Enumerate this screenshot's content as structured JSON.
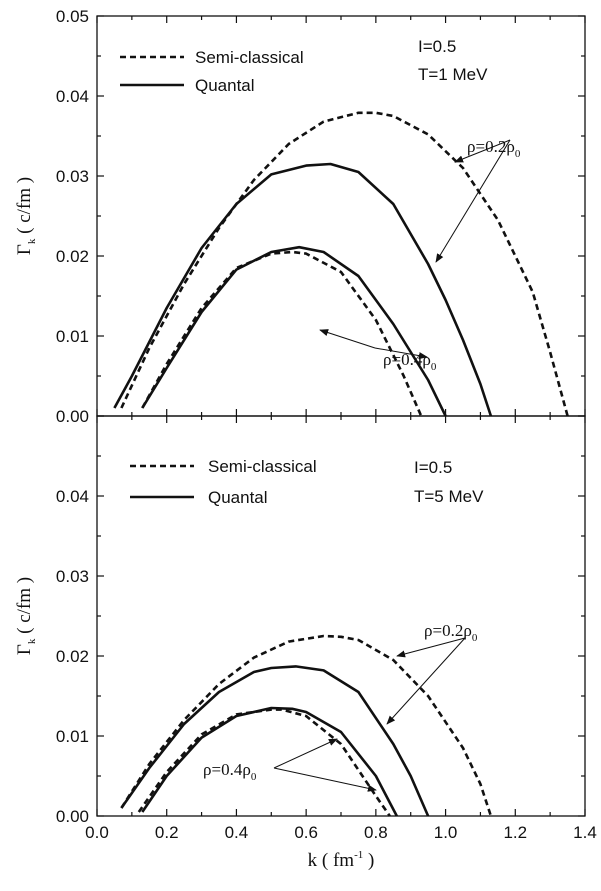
{
  "chart_data": [
    {
      "type": "line",
      "panel": "top",
      "x_tick_labels": [],
      "y_ticks": [
        "0.00",
        "0.01",
        "0.02",
        "0.03",
        "0.04",
        "0.05"
      ],
      "ylim": [
        0,
        0.05
      ],
      "xlim": [
        0,
        1.4
      ],
      "ylabel": {
        "main": "Γ",
        "sub": "k",
        "rest": " ( c/fm )"
      },
      "legend": {
        "placement": "top-left",
        "semi": "Semi-classical",
        "quantal": "Quantal"
      },
      "conditions": [
        "I=0.5",
        "T=1 MeV"
      ],
      "series": [
        {
          "name": "Semi-classical",
          "curve": "ρ=0.2ρ0",
          "style": "dashed",
          "x": [
            0.07,
            0.15,
            0.25,
            0.35,
            0.45,
            0.55,
            0.65,
            0.75,
            0.8,
            0.85,
            0.95,
            1.05,
            1.15,
            1.25,
            1.3,
            1.35
          ],
          "y": [
            0.001,
            0.0085,
            0.0165,
            0.0235,
            0.0295,
            0.034,
            0.0368,
            0.0379,
            0.0379,
            0.0375,
            0.0352,
            0.031,
            0.0245,
            0.0155,
            0.008,
            0.0
          ]
        },
        {
          "name": "Quantal",
          "curve": "ρ=0.2ρ0",
          "style": "solid",
          "x": [
            0.05,
            0.1,
            0.2,
            0.3,
            0.4,
            0.5,
            0.6,
            0.67,
            0.75,
            0.85,
            0.95,
            1.0,
            1.05,
            1.1,
            1.13
          ],
          "y": [
            0.001,
            0.005,
            0.0135,
            0.021,
            0.0265,
            0.0302,
            0.0313,
            0.0315,
            0.0305,
            0.0265,
            0.019,
            0.0145,
            0.0095,
            0.004,
            0.0
          ]
        },
        {
          "name": "Semi-classical",
          "curve": "ρ=0.4ρ0",
          "style": "dashed",
          "x": [
            0.13,
            0.2,
            0.3,
            0.4,
            0.5,
            0.56,
            0.6,
            0.7,
            0.8,
            0.88,
            0.93
          ],
          "y": [
            0.001,
            0.0065,
            0.0135,
            0.0185,
            0.0203,
            0.0205,
            0.0203,
            0.018,
            0.012,
            0.005,
            0.0
          ]
        },
        {
          "name": "Quantal",
          "curve": "ρ=0.4ρ0",
          "style": "solid",
          "x": [
            0.13,
            0.2,
            0.3,
            0.4,
            0.5,
            0.58,
            0.65,
            0.75,
            0.85,
            0.95,
            1.0
          ],
          "y": [
            0.001,
            0.006,
            0.013,
            0.0183,
            0.0205,
            0.0211,
            0.0205,
            0.0175,
            0.0115,
            0.0045,
            0.0
          ]
        }
      ],
      "annotations": [
        {
          "label": {
            "main": "ρ=0.2ρ",
            "sub": "0"
          }
        },
        {
          "label": {
            "main": "ρ=0.4ρ",
            "sub": "0"
          }
        }
      ]
    },
    {
      "type": "line",
      "panel": "bottom",
      "x_tick_labels": [
        "0.0",
        "0.2",
        "0.4",
        "0.6",
        "0.8",
        "1.0",
        "1.2",
        "1.4"
      ],
      "y_ticks": [
        "0.00",
        "0.01",
        "0.02",
        "0.03",
        "0.04"
      ],
      "ylim": [
        0,
        0.05
      ],
      "xlim": [
        0,
        1.4
      ],
      "xlabel": {
        "main": "k ( fm",
        "sup": "-1",
        "rest": " )"
      },
      "ylabel": {
        "main": "Γ",
        "sub": "k",
        "rest": " ( c/fm )"
      },
      "legend": {
        "placement": "top-left",
        "semi": "Semi-classical",
        "quantal": "Quantal"
      },
      "conditions": [
        "I=0.5",
        "T=5 MeV"
      ],
      "series": [
        {
          "name": "Semi-classical",
          "curve": "ρ=0.2ρ0",
          "style": "dashed",
          "x": [
            0.07,
            0.15,
            0.25,
            0.35,
            0.45,
            0.55,
            0.65,
            0.7,
            0.75,
            0.85,
            0.95,
            1.05,
            1.1,
            1.13
          ],
          "y": [
            0.001,
            0.0065,
            0.012,
            0.0165,
            0.0198,
            0.0218,
            0.0225,
            0.0224,
            0.022,
            0.0195,
            0.015,
            0.0085,
            0.004,
            0.0
          ]
        },
        {
          "name": "Quantal",
          "curve": "ρ=0.2ρ0",
          "style": "solid",
          "x": [
            0.07,
            0.15,
            0.25,
            0.35,
            0.45,
            0.5,
            0.57,
            0.65,
            0.75,
            0.85,
            0.9,
            0.95
          ],
          "y": [
            0.001,
            0.006,
            0.0115,
            0.0155,
            0.018,
            0.0185,
            0.0187,
            0.0182,
            0.0155,
            0.009,
            0.005,
            0.0
          ]
        },
        {
          "name": "Semi-classical",
          "curve": "ρ=0.4ρ0",
          "style": "dashed",
          "x": [
            0.12,
            0.2,
            0.3,
            0.4,
            0.5,
            0.53,
            0.6,
            0.7,
            0.8,
            0.84
          ],
          "y": [
            0.0005,
            0.0055,
            0.0102,
            0.0127,
            0.0133,
            0.0133,
            0.0125,
            0.009,
            0.0025,
            0.0
          ]
        },
        {
          "name": "Quantal",
          "curve": "ρ=0.4ρ0",
          "style": "solid",
          "x": [
            0.13,
            0.2,
            0.3,
            0.4,
            0.5,
            0.56,
            0.6,
            0.7,
            0.8,
            0.86
          ],
          "y": [
            0.0005,
            0.005,
            0.0098,
            0.0125,
            0.0135,
            0.0134,
            0.013,
            0.0105,
            0.005,
            0.0
          ]
        }
      ],
      "annotations": [
        {
          "label": {
            "main": "ρ=0.2ρ",
            "sub": "0"
          }
        },
        {
          "label": {
            "main": "ρ=0.4ρ",
            "sub": "0"
          }
        }
      ]
    }
  ]
}
